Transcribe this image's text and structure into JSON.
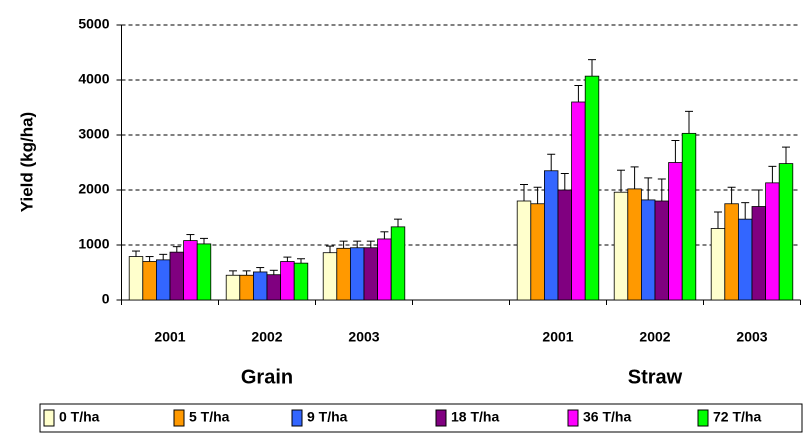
{
  "chart_data": {
    "type": "bar",
    "y_label": "Yield (kg/ha)",
    "categories": [
      "2001",
      "2002",
      "2003",
      null,
      "2001",
      "2002",
      "2003"
    ],
    "group_labels": [
      "Grain",
      "Straw"
    ],
    "ylim": [
      0,
      5000
    ],
    "yticks": [
      0,
      1000,
      2000,
      3000,
      4000,
      5000
    ],
    "grid": true,
    "legend": "bottom",
    "series": [
      {
        "name": "0 T/ha",
        "color": "#ffffcc",
        "values": [
          790,
          450,
          860,
          null,
          1800,
          1960,
          1300
        ],
        "errors": [
          100,
          80,
          120,
          null,
          300,
          400,
          300
        ]
      },
      {
        "name": "5 T/ha",
        "color": "#ff9900",
        "values": [
          700,
          450,
          940,
          null,
          1750,
          2020,
          1750
        ],
        "errors": [
          90,
          80,
          130,
          null,
          300,
          400,
          300
        ]
      },
      {
        "name": "9 T/ha",
        "color": "#3366ff",
        "values": [
          730,
          510,
          950,
          null,
          2350,
          1820,
          1470
        ],
        "errors": [
          100,
          80,
          120,
          null,
          300,
          400,
          300
        ]
      },
      {
        "name": "18 T/ha",
        "color": "#800080",
        "values": [
          870,
          460,
          950,
          null,
          2000,
          1800,
          1700
        ],
        "errors": [
          100,
          80,
          120,
          null,
          300,
          400,
          300
        ]
      },
      {
        "name": "36 T/ha",
        "color": "#ff00ff",
        "values": [
          1080,
          700,
          1110,
          null,
          3600,
          2500,
          2130
        ],
        "errors": [
          110,
          80,
          130,
          null,
          300,
          400,
          300
        ]
      },
      {
        "name": "72 T/ha",
        "color": "#00ff00",
        "values": [
          1020,
          670,
          1330,
          null,
          4070,
          3030,
          2480
        ],
        "errors": [
          100,
          80,
          140,
          null,
          300,
          400,
          300
        ]
      }
    ]
  }
}
